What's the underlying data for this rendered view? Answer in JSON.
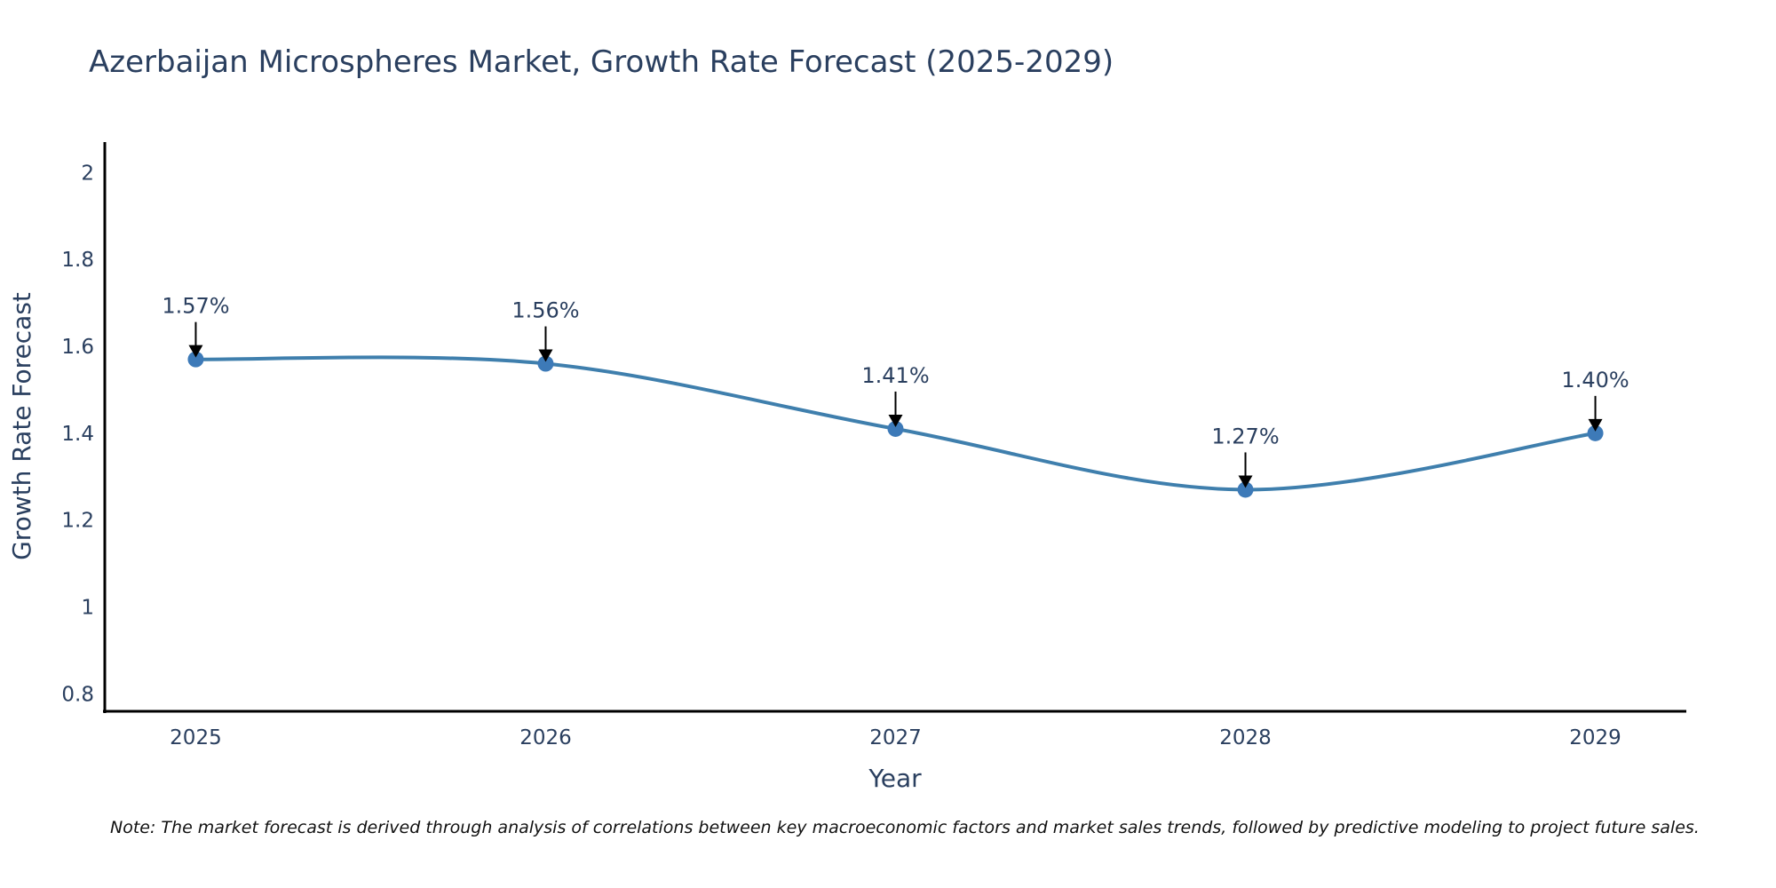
{
  "chart_data": {
    "type": "line",
    "title": "Azerbaijan Microspheres Market, Growth Rate Forecast (2025-2029)",
    "xlabel": "Year",
    "ylabel": "Growth Rate Forecast",
    "categories": [
      "2025",
      "2026",
      "2027",
      "2028",
      "2029"
    ],
    "series": [
      {
        "name": "Growth Rate Forecast",
        "values": [
          1.57,
          1.56,
          1.41,
          1.27,
          1.4
        ],
        "line_shape": "spline",
        "color": "#3f7fad",
        "marker_color": "#3d7ab8"
      }
    ],
    "annotations": [
      "1.57%",
      "1.56%",
      "1.41%",
      "1.27%",
      "1.40%"
    ],
    "yticks": [
      "0.8",
      "1",
      "1.2",
      "1.4",
      "1.6",
      "1.8",
      "2"
    ],
    "ytick_values": [
      0.8,
      1.0,
      1.2,
      1.4,
      1.6,
      1.8,
      2.0
    ],
    "ylim": [
      0.76,
      2.07
    ],
    "xlim": [
      -0.26,
      4.26
    ],
    "grid": false,
    "legend": "none",
    "note": "Note: The market forecast is derived through analysis of correlations between key macroeconomic factors and market sales trends, followed by predictive modeling to project future sales."
  }
}
